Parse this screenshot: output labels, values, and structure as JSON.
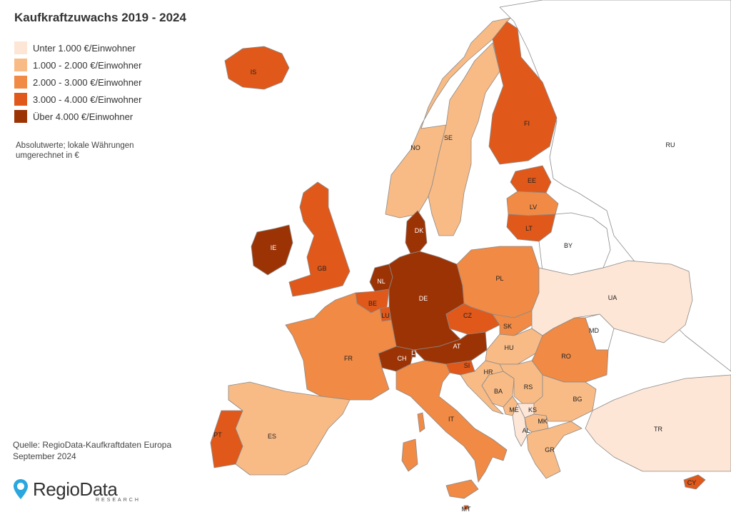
{
  "title": "Kaufkraftzuwachs 2019 - 2024",
  "legend": [
    {
      "label": "Unter 1.000  €/Einwohner",
      "color": "#fde6d6"
    },
    {
      "label": "1.000 - 2.000 €/Einwohner",
      "color": "#f8bb86"
    },
    {
      "label": "2.000 -  3.000 €/Einwohner",
      "color": "#f08a45"
    },
    {
      "label": "3.000 - 4.000 €/Einwohner",
      "color": "#e0581a"
    },
    {
      "label": "Über 4.000 €/Einwohner",
      "color": "#9c3305"
    }
  ],
  "note": "Absolutwerte; lokale Währungen umgerechnet in €",
  "source_line1": "Quelle: RegioData-Kaufkraftdaten Europa",
  "source_line2": "September 2024",
  "logo": {
    "word": "RegioData",
    "sub": "RESEARCH",
    "icon": "location-pin-icon",
    "icon_color": "#2aa7df"
  },
  "regions": [
    {
      "code": "IS",
      "cls": 3
    },
    {
      "code": "NO",
      "cls": 1
    },
    {
      "code": "SE",
      "cls": 1
    },
    {
      "code": "FI",
      "cls": 3
    },
    {
      "code": "EE",
      "cls": 3
    },
    {
      "code": "LV",
      "cls": 2
    },
    {
      "code": "LT",
      "cls": 3
    },
    {
      "code": "DK",
      "cls": 4
    },
    {
      "code": "IE",
      "cls": 4
    },
    {
      "code": "GB",
      "cls": 3
    },
    {
      "code": "NL",
      "cls": 4
    },
    {
      "code": "BE",
      "cls": 3
    },
    {
      "code": "LU",
      "cls": 3
    },
    {
      "code": "DE",
      "cls": 4
    },
    {
      "code": "PL",
      "cls": 2
    },
    {
      "code": "CZ",
      "cls": 3
    },
    {
      "code": "SK",
      "cls": 2
    },
    {
      "code": "AT",
      "cls": 4
    },
    {
      "code": "CH",
      "cls": 4
    },
    {
      "code": "LI",
      "cls": 4
    },
    {
      "code": "FR",
      "cls": 2
    },
    {
      "code": "ES",
      "cls": 1
    },
    {
      "code": "PT",
      "cls": 3
    },
    {
      "code": "IT",
      "cls": 2
    },
    {
      "code": "SI",
      "cls": 3
    },
    {
      "code": "HR",
      "cls": 1
    },
    {
      "code": "HU",
      "cls": 1
    },
    {
      "code": "RO",
      "cls": 2
    },
    {
      "code": "BA",
      "cls": 1
    },
    {
      "code": "RS",
      "cls": 1
    },
    {
      "code": "ME",
      "cls": 1
    },
    {
      "code": "KS",
      "cls": 0
    },
    {
      "code": "AL",
      "cls": 0
    },
    {
      "code": "MK",
      "cls": 1
    },
    {
      "code": "BG",
      "cls": 1
    },
    {
      "code": "GR",
      "cls": 1
    },
    {
      "code": "TR",
      "cls": 0
    },
    {
      "code": "CY",
      "cls": 3
    },
    {
      "code": "MT",
      "cls": 3
    },
    {
      "code": "UA",
      "cls": 0
    },
    {
      "code": "MD",
      "cls": null
    },
    {
      "code": "BY",
      "cls": null
    },
    {
      "code": "RU",
      "cls": null
    }
  ]
}
